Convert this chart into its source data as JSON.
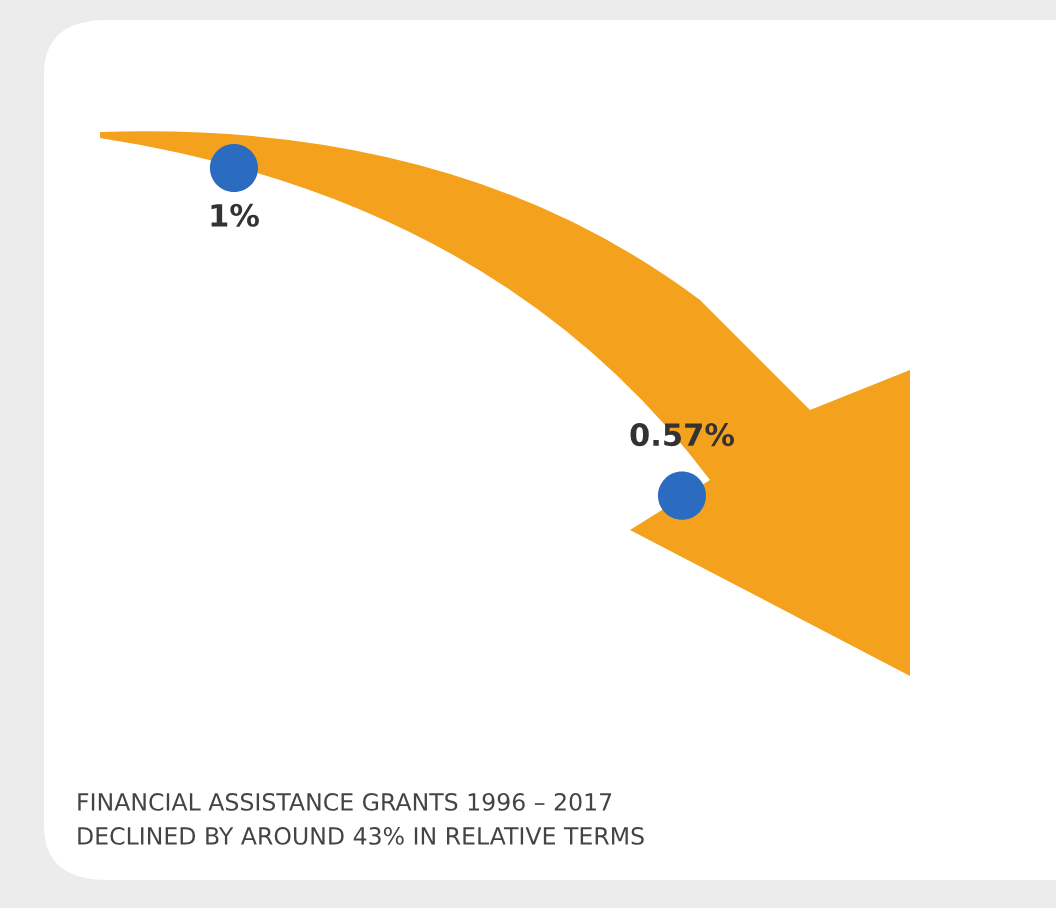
{
  "chart_data": {
    "type": "other",
    "categories": [
      null,
      null
    ],
    "series": [
      {
        "color": "#2b6cc0",
        "values": [
          1,
          0.57
        ],
        "value_labels": [
          "1%",
          "0.57%"
        ]
      }
    ],
    "legend": false,
    "annotations": [
      "FINANCIAL ASSISTANCE GRANTS 1996 – 2017",
      "DECLINED BY AROUND 43% IN RELATIVE TERMS"
    ]
  }
}
